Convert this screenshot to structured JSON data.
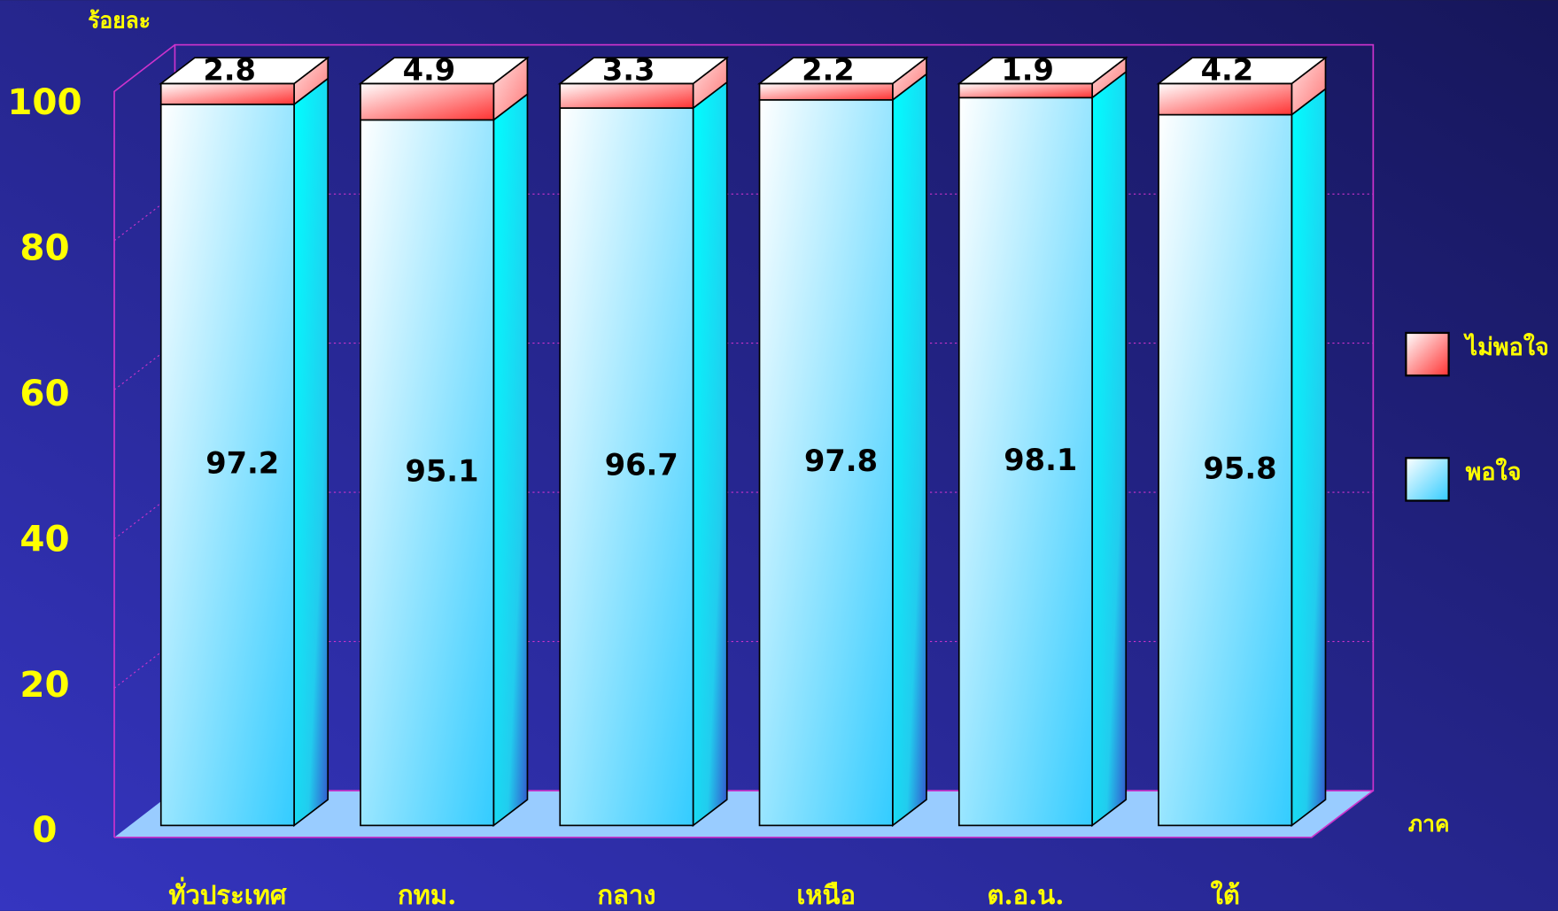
{
  "chart_data": {
    "type": "bar3d-stacked",
    "y_label": "ร้อยละ",
    "x_label": "ภาค",
    "categories": [
      "ทั่วประเทศ",
      "กทม.",
      "กลาง",
      "เหนือ",
      "ต.อ.น.",
      "ใต้"
    ],
    "series": [
      {
        "name": "พอใจ",
        "color": "#33ccff",
        "values": [
          97.2,
          95.1,
          96.7,
          97.8,
          98.1,
          95.8
        ]
      },
      {
        "name": "ไม่พอใจ",
        "color": "#ff3333",
        "values": [
          2.8,
          4.9,
          3.3,
          2.2,
          1.9,
          4.2
        ]
      }
    ],
    "ylim": [
      0,
      100
    ],
    "yticks": [
      0,
      20,
      40,
      60,
      80,
      100
    ],
    "grid": true
  }
}
